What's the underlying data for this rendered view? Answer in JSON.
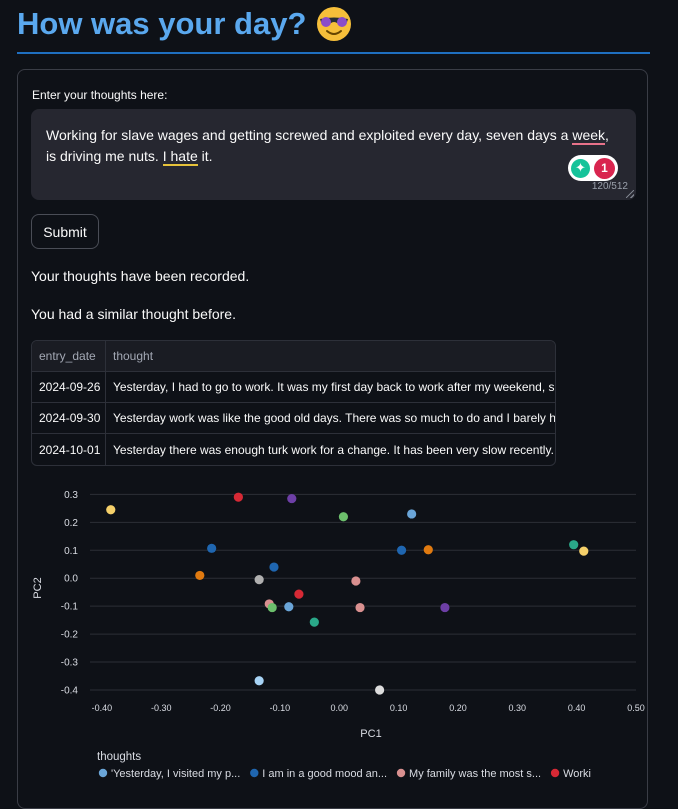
{
  "page": {
    "title": "How was your day?",
    "emoji_icon": "smiling-face-with-sunglasses-icon"
  },
  "form": {
    "label": "Enter your thoughts here:",
    "text_before_week": "Working for slave wages and getting screwed and exploited every day, seven days a ",
    "text_week": "week",
    "text_mid": ", is driving me nuts.  ",
    "text_i": "I ",
    "text_hate": "hate",
    "text_after": " it.",
    "counter": "120/512",
    "grammarly_count": "1",
    "submit_label": "Submit"
  },
  "messages": {
    "recorded": "Your thoughts have been recorded.",
    "similar": "You had a similar thought before."
  },
  "table": {
    "headers": [
      "entry_date",
      "thought"
    ],
    "rows": [
      [
        "2024-09-26",
        "Yesterday, I had to go to work. It was my first day back to work after my weekend, so I"
      ],
      [
        "2024-09-30",
        "Yesterday work was like the good old days. There was so much to do and I barely had"
      ],
      [
        "2024-10-01",
        "Yesterday there was enough turk work for a change. It has been very slow recently. At"
      ]
    ]
  },
  "chart_data": {
    "type": "scatter",
    "xlabel": "PC1",
    "ylabel": "PC2",
    "xlim": [
      -0.42,
      0.5
    ],
    "ylim": [
      -0.4,
      0.33
    ],
    "xticks": [
      "-0.40",
      "-0.30",
      "-0.20",
      "-0.10",
      "0.00",
      "0.10",
      "0.20",
      "0.30",
      "0.40",
      "0.50"
    ],
    "yticks": [
      "0.3",
      "0.2",
      "0.1",
      "0.0",
      "-0.1",
      "-0.2",
      "-0.3",
      "-0.4"
    ],
    "grid": true,
    "legend_title": "thoughts",
    "legend": [
      {
        "label": "'Yesterday, I visited my p...",
        "color": "#6aa5d8"
      },
      {
        "label": "I am in a good  mood an...",
        "color": "#1f66b0"
      },
      {
        "label": "My family was the most s...",
        "color": "#d99090"
      },
      {
        "label": "Worki",
        "color": "#d62935"
      }
    ],
    "points": [
      {
        "x": -0.385,
        "y": 0.245,
        "color": "#f5d06a"
      },
      {
        "x": -0.17,
        "y": 0.29,
        "color": "#d62935"
      },
      {
        "x": -0.08,
        "y": 0.285,
        "color": "#6d3fa6"
      },
      {
        "x": 0.007,
        "y": 0.22,
        "color": "#6cbf6c"
      },
      {
        "x": 0.122,
        "y": 0.23,
        "color": "#6aa5d8"
      },
      {
        "x": -0.215,
        "y": 0.107,
        "color": "#1f66b0"
      },
      {
        "x": 0.105,
        "y": 0.1,
        "color": "#1f66b0"
      },
      {
        "x": 0.15,
        "y": 0.102,
        "color": "#e07a10"
      },
      {
        "x": 0.395,
        "y": 0.12,
        "color": "#2aa889"
      },
      {
        "x": 0.412,
        "y": 0.097,
        "color": "#f5d06a"
      },
      {
        "x": -0.235,
        "y": 0.01,
        "color": "#e07a10"
      },
      {
        "x": -0.11,
        "y": 0.04,
        "color": "#1f66b0"
      },
      {
        "x": -0.135,
        "y": -0.005,
        "color": "#b0b0b0"
      },
      {
        "x": 0.028,
        "y": -0.01,
        "color": "#d99090"
      },
      {
        "x": -0.068,
        "y": -0.057,
        "color": "#d62935"
      },
      {
        "x": -0.118,
        "y": -0.092,
        "color": "#d99090"
      },
      {
        "x": -0.113,
        "y": -0.105,
        "color": "#6cbf6c"
      },
      {
        "x": -0.085,
        "y": -0.102,
        "color": "#6aa5d8"
      },
      {
        "x": 0.035,
        "y": -0.105,
        "color": "#d99090"
      },
      {
        "x": 0.178,
        "y": -0.105,
        "color": "#6d3fa6"
      },
      {
        "x": -0.042,
        "y": -0.157,
        "color": "#2aa889"
      },
      {
        "x": -0.135,
        "y": -0.367,
        "color": "#a7d3f5"
      },
      {
        "x": 0.068,
        "y": -0.4,
        "color": "#dddddd"
      }
    ]
  }
}
